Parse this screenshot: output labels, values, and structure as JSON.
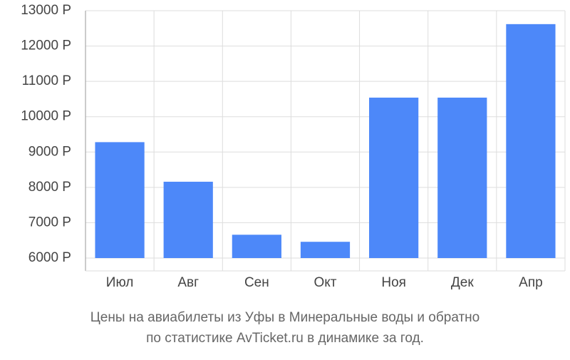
{
  "chart_data": {
    "type": "bar",
    "title": [
      "Цены на авиабилеты из Уфы в Минеральные воды и обратно",
      "по статистике AvTicket.ru в динамике за год."
    ],
    "categories": [
      "Июл",
      "Авг",
      "Сен",
      "Окт",
      "Ноя",
      "Дек",
      "Апр"
    ],
    "values": [
      9280,
      8160,
      6660,
      6460,
      10540,
      10540,
      12620
    ],
    "color": "#4d88f9",
    "ylim": [
      6000,
      13000
    ],
    "yticks": [
      {
        "value": 6000,
        "label": "6000 Р"
      },
      {
        "value": 7000,
        "label": "7000 Р"
      },
      {
        "value": 8000,
        "label": "8000 Р"
      },
      {
        "value": 9000,
        "label": "9000 Р"
      },
      {
        "value": 10000,
        "label": "10000 Р"
      },
      {
        "value": 11000,
        "label": "11000 Р"
      },
      {
        "value": 12000,
        "label": "12000 Р"
      },
      {
        "value": 13000,
        "label": "13000 Р"
      }
    ],
    "grid": true
  }
}
